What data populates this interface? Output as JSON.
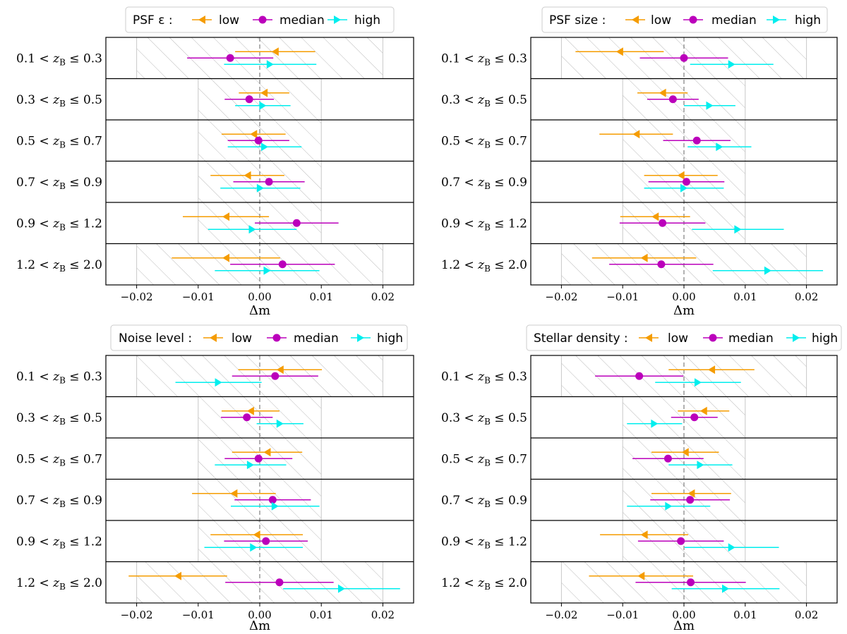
{
  "figure": {
    "colors": {
      "low": "#f59c00",
      "median": "#bb00bb",
      "high": "#00eeee",
      "hatch": "#bbbbbb",
      "zero_line": "#666666"
    },
    "legend_labels": {
      "low": "low",
      "median": "median",
      "high": "high"
    }
  },
  "chart_data": [
    {
      "type": "errorbar",
      "legend_title": "PSF ε :",
      "xlabel": "Δm",
      "xlim": [
        -0.025,
        0.025
      ],
      "xticks": [
        "−0.02",
        "−0.01",
        "0.00",
        "0.01",
        "0.02"
      ],
      "shaded_band": [
        [
          -0.02,
          0.02
        ],
        [
          -0.01,
          0.01
        ],
        [
          -0.01,
          0.01
        ],
        [
          -0.01,
          0.01
        ],
        [
          -0.01,
          0.01
        ],
        [
          -0.02,
          0.02
        ]
      ],
      "bins": [
        "0.1 < z_B ≤ 0.3",
        "0.3 < z_B ≤ 0.5",
        "0.5 < z_B ≤ 0.7",
        "0.7 < z_B ≤ 0.9",
        "0.9 < z_B ≤ 1.2",
        "1.2 < z_B ≤ 2.0"
      ],
      "series": [
        {
          "name": "low",
          "values": [
            0.0025,
            0.0007,
            -0.001,
            -0.002,
            -0.0055,
            -0.0055
          ],
          "errors": [
            0.0065,
            0.0041,
            0.0052,
            0.006,
            0.007,
            0.0088
          ]
        },
        {
          "name": "median",
          "values": [
            -0.0048,
            -0.0017,
            -0.0002,
            0.0015,
            0.006,
            0.0037
          ],
          "errors": [
            0.007,
            0.004,
            0.005,
            0.0058,
            0.0068,
            0.0085
          ]
        },
        {
          "name": "high",
          "values": [
            0.0017,
            0.0005,
            0.0008,
            0.0001,
            -0.0012,
            0.0012
          ],
          "errors": [
            0.0075,
            0.0045,
            0.006,
            0.0065,
            0.0072,
            0.0085
          ]
        }
      ]
    },
    {
      "type": "errorbar",
      "legend_title": "PSF size :",
      "xlabel": "Δm",
      "xlim": [
        -0.025,
        0.025
      ],
      "xticks": [
        "−0.02",
        "−0.01",
        "0.00",
        "0.01",
        "0.02"
      ],
      "shaded_band": [
        [
          -0.02,
          0.02
        ],
        [
          -0.01,
          0.01
        ],
        [
          -0.01,
          0.01
        ],
        [
          -0.01,
          0.01
        ],
        [
          -0.01,
          0.01
        ],
        [
          -0.02,
          0.02
        ]
      ],
      "bins": [
        "0.1 < z_B ≤ 0.3",
        "0.3 < z_B ≤ 0.5",
        "0.5 < z_B ≤ 0.7",
        "0.7 < z_B ≤ 0.9",
        "0.9 < z_B ≤ 1.2",
        "1.2 < z_B ≤ 2.0"
      ],
      "series": [
        {
          "name": "low",
          "values": [
            -0.0105,
            -0.0035,
            -0.0078,
            -0.0005,
            -0.0047,
            -0.0065
          ],
          "errors": [
            0.0072,
            0.0041,
            0.006,
            0.006,
            0.0057,
            0.0085
          ]
        },
        {
          "name": "median",
          "values": [
            0.0,
            -0.0018,
            0.0021,
            0.0004,
            -0.0035,
            -0.0037
          ],
          "errors": [
            0.0072,
            0.0042,
            0.0055,
            0.0062,
            0.007,
            0.0085
          ]
        },
        {
          "name": "high",
          "values": [
            0.0078,
            0.0042,
            0.0058,
            0.0,
            0.0088,
            0.0137
          ],
          "errors": [
            0.0068,
            0.0042,
            0.0052,
            0.0065,
            0.0075,
            0.009
          ]
        }
      ]
    },
    {
      "type": "errorbar",
      "legend_title": "Noise level :",
      "xlabel": "Δm",
      "xlim": [
        -0.025,
        0.025
      ],
      "xticks": [
        "−0.02",
        "−0.01",
        "0.00",
        "0.01",
        "0.02"
      ],
      "shaded_band": [
        [
          -0.02,
          0.02
        ],
        [
          -0.01,
          0.01
        ],
        [
          -0.01,
          0.01
        ],
        [
          -0.01,
          0.01
        ],
        [
          -0.01,
          0.01
        ],
        [
          -0.02,
          0.02
        ]
      ],
      "bins": [
        "0.1 < z_B ≤ 0.3",
        "0.3 < z_B ≤ 0.5",
        "0.5 < z_B ≤ 0.7",
        "0.7 < z_B ≤ 0.9",
        "0.9 < z_B ≤ 1.2",
        "1.2 < z_B ≤ 2.0"
      ],
      "series": [
        {
          "name": "low",
          "values": [
            0.0033,
            -0.0015,
            0.0012,
            -0.0042,
            -0.0005,
            -0.0133
          ],
          "errors": [
            0.0068,
            0.0047,
            0.0057,
            0.0068,
            0.0075,
            0.008
          ]
        },
        {
          "name": "median",
          "values": [
            0.0025,
            -0.0021,
            -0.0002,
            0.0021,
            0.001,
            0.0032
          ],
          "errors": [
            0.007,
            0.0042,
            0.0055,
            0.0062,
            0.0068,
            0.0088
          ]
        },
        {
          "name": "high",
          "values": [
            -0.0067,
            0.0033,
            -0.0015,
            0.0025,
            -0.001,
            0.0133
          ],
          "errors": [
            0.007,
            0.0038,
            0.0058,
            0.0072,
            0.008,
            0.0095
          ]
        }
      ]
    },
    {
      "type": "errorbar",
      "legend_title": "Stellar density :",
      "xlabel": "Δm",
      "xlim": [
        -0.025,
        0.025
      ],
      "xticks": [
        "−0.02",
        "−0.01",
        "0.00",
        "0.01",
        "0.02"
      ],
      "shaded_band": [
        [
          -0.02,
          0.02
        ],
        [
          -0.01,
          0.01
        ],
        [
          -0.01,
          0.01
        ],
        [
          -0.01,
          0.01
        ],
        [
          -0.01,
          0.01
        ],
        [
          -0.02,
          0.02
        ]
      ],
      "bins": [
        "0.1 < z_B ≤ 0.3",
        "0.3 < z_B ≤ 0.5",
        "0.5 < z_B ≤ 0.7",
        "0.7 < z_B ≤ 0.9",
        "0.9 < z_B ≤ 1.2",
        "1.2 < z_B ≤ 2.0"
      ],
      "series": [
        {
          "name": "low",
          "values": [
            0.0045,
            0.0032,
            0.0002,
            0.0012,
            -0.0065,
            -0.007
          ],
          "errors": [
            0.007,
            0.0042,
            0.0055,
            0.0065,
            0.0072,
            0.0085
          ]
        },
        {
          "name": "median",
          "values": [
            -0.0073,
            0.0017,
            -0.0026,
            0.001,
            -0.0005,
            0.0011
          ],
          "errors": [
            0.0072,
            0.0038,
            0.0058,
            0.0065,
            0.007,
            0.009
          ]
        },
        {
          "name": "high",
          "values": [
            0.0023,
            -0.0048,
            0.0027,
            -0.0025,
            0.0078,
            0.0068
          ],
          "errors": [
            0.007,
            0.0045,
            0.0052,
            0.0068,
            0.0077,
            0.0088
          ]
        }
      ]
    }
  ]
}
